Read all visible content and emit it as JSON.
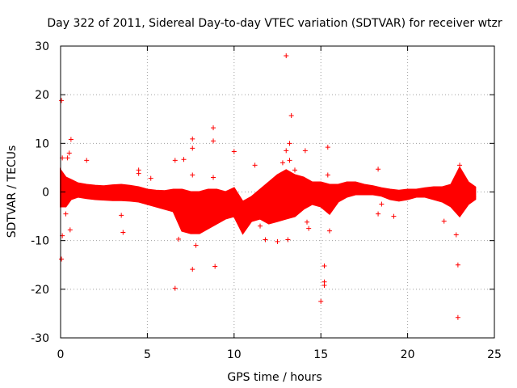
{
  "chart_data": {
    "type": "scatter",
    "title": "Day 322 of 2011, Sidereal Day-to-day VTEC variation (SDTVAR) for receiver wtzr",
    "xlabel": "GPS time / hours",
    "ylabel": "SDTVAR / TECUs",
    "xlim": [
      0,
      25
    ],
    "ylim": [
      -30,
      30
    ],
    "xticks": [
      0,
      5,
      10,
      15,
      20,
      25
    ],
    "yticks": [
      -30,
      -20,
      -10,
      0,
      10,
      20,
      30
    ],
    "grid": true,
    "marker": "+",
    "color": "#ff0000",
    "band": [
      {
        "x": 0.0,
        "lo": -3.0,
        "hi": 4.5
      },
      {
        "x": 0.3,
        "lo": -3.0,
        "hi": 3.0
      },
      {
        "x": 0.6,
        "lo": -1.5,
        "hi": 2.5
      },
      {
        "x": 1.0,
        "lo": -1.0,
        "hi": 1.8
      },
      {
        "x": 1.5,
        "lo": -1.3,
        "hi": 1.5
      },
      {
        "x": 2.0,
        "lo": -1.5,
        "hi": 1.3
      },
      {
        "x": 2.5,
        "lo": -1.6,
        "hi": 1.2
      },
      {
        "x": 3.0,
        "lo": -1.7,
        "hi": 1.4
      },
      {
        "x": 3.5,
        "lo": -1.7,
        "hi": 1.5
      },
      {
        "x": 4.0,
        "lo": -1.8,
        "hi": 1.3
      },
      {
        "x": 4.5,
        "lo": -2.0,
        "hi": 1.0
      },
      {
        "x": 5.0,
        "lo": -2.5,
        "hi": 0.5
      },
      {
        "x": 5.5,
        "lo": -3.0,
        "hi": 0.3
      },
      {
        "x": 6.0,
        "lo": -3.5,
        "hi": 0.2
      },
      {
        "x": 6.5,
        "lo": -4.0,
        "hi": 0.5
      },
      {
        "x": 7.0,
        "lo": -8.0,
        "hi": 0.5
      },
      {
        "x": 7.5,
        "lo": -8.5,
        "hi": 0.0
      },
      {
        "x": 8.0,
        "lo": -8.5,
        "hi": 0.0
      },
      {
        "x": 8.5,
        "lo": -7.5,
        "hi": 0.5
      },
      {
        "x": 9.0,
        "lo": -6.5,
        "hi": 0.5
      },
      {
        "x": 9.5,
        "lo": -5.5,
        "hi": 0.0
      },
      {
        "x": 10.0,
        "lo": -5.0,
        "hi": 0.8
      },
      {
        "x": 10.5,
        "lo": -8.5,
        "hi": -2.0
      },
      {
        "x": 11.0,
        "lo": -6.0,
        "hi": -1.0
      },
      {
        "x": 11.5,
        "lo": -5.5,
        "hi": 0.5
      },
      {
        "x": 12.0,
        "lo": -6.5,
        "hi": 2.0
      },
      {
        "x": 12.5,
        "lo": -6.0,
        "hi": 3.5
      },
      {
        "x": 13.0,
        "lo": -5.5,
        "hi": 4.5
      },
      {
        "x": 13.5,
        "lo": -5.0,
        "hi": 3.5
      },
      {
        "x": 14.0,
        "lo": -3.5,
        "hi": 3.0
      },
      {
        "x": 14.5,
        "lo": -2.5,
        "hi": 2.0
      },
      {
        "x": 15.0,
        "lo": -3.0,
        "hi": 2.0
      },
      {
        "x": 15.5,
        "lo": -4.5,
        "hi": 1.5
      },
      {
        "x": 16.0,
        "lo": -2.0,
        "hi": 1.5
      },
      {
        "x": 16.5,
        "lo": -1.0,
        "hi": 2.0
      },
      {
        "x": 17.0,
        "lo": -0.5,
        "hi": 2.0
      },
      {
        "x": 17.5,
        "lo": -0.5,
        "hi": 1.5
      },
      {
        "x": 18.0,
        "lo": -0.5,
        "hi": 1.2
      },
      {
        "x": 18.5,
        "lo": -0.8,
        "hi": 0.8
      },
      {
        "x": 19.0,
        "lo": -1.5,
        "hi": 0.5
      },
      {
        "x": 19.5,
        "lo": -1.8,
        "hi": 0.3
      },
      {
        "x": 20.0,
        "lo": -1.5,
        "hi": 0.5
      },
      {
        "x": 20.5,
        "lo": -1.0,
        "hi": 0.5
      },
      {
        "x": 21.0,
        "lo": -1.0,
        "hi": 0.8
      },
      {
        "x": 21.5,
        "lo": -1.5,
        "hi": 1.0
      },
      {
        "x": 22.0,
        "lo": -2.0,
        "hi": 1.0
      },
      {
        "x": 22.5,
        "lo": -3.0,
        "hi": 1.5
      },
      {
        "x": 23.0,
        "lo": -5.0,
        "hi": 5.0
      },
      {
        "x": 23.5,
        "lo": -2.5,
        "hi": 2.0
      },
      {
        "x": 23.9,
        "lo": -1.5,
        "hi": 1.0
      }
    ],
    "outliers": [
      {
        "x": 0.05,
        "y": 18.8
      },
      {
        "x": 0.05,
        "y": -13.8
      },
      {
        "x": 0.1,
        "y": -9.0
      },
      {
        "x": 0.1,
        "y": 7.0
      },
      {
        "x": 0.4,
        "y": 7.0
      },
      {
        "x": 0.5,
        "y": 8.0
      },
      {
        "x": 0.6,
        "y": 10.8
      },
      {
        "x": 0.55,
        "y": -7.8
      },
      {
        "x": 0.3,
        "y": -4.5
      },
      {
        "x": 1.5,
        "y": 6.5
      },
      {
        "x": 3.5,
        "y": -4.8
      },
      {
        "x": 3.6,
        "y": -8.3
      },
      {
        "x": 4.5,
        "y": 4.5
      },
      {
        "x": 4.5,
        "y": 3.8
      },
      {
        "x": 5.2,
        "y": 2.8
      },
      {
        "x": 6.6,
        "y": 6.5
      },
      {
        "x": 6.6,
        "y": -19.8
      },
      {
        "x": 6.8,
        "y": -9.7
      },
      {
        "x": 7.1,
        "y": 6.7
      },
      {
        "x": 7.6,
        "y": 10.9
      },
      {
        "x": 7.6,
        "y": 3.5
      },
      {
        "x": 7.6,
        "y": 9.0
      },
      {
        "x": 7.6,
        "y": -15.9
      },
      {
        "x": 7.8,
        "y": -11.0
      },
      {
        "x": 8.8,
        "y": 13.2
      },
      {
        "x": 8.8,
        "y": 10.5
      },
      {
        "x": 8.8,
        "y": 3.0
      },
      {
        "x": 8.9,
        "y": -15.3
      },
      {
        "x": 10.0,
        "y": 8.3
      },
      {
        "x": 11.2,
        "y": 5.5
      },
      {
        "x": 11.5,
        "y": -7.0
      },
      {
        "x": 11.8,
        "y": -9.8
      },
      {
        "x": 12.5,
        "y": -10.2
      },
      {
        "x": 12.8,
        "y": 6.0
      },
      {
        "x": 13.0,
        "y": 28.0
      },
      {
        "x": 13.0,
        "y": 8.5
      },
      {
        "x": 13.1,
        "y": -9.8
      },
      {
        "x": 13.2,
        "y": 6.5
      },
      {
        "x": 13.2,
        "y": 10.0
      },
      {
        "x": 13.3,
        "y": 15.7
      },
      {
        "x": 13.5,
        "y": 4.5
      },
      {
        "x": 14.1,
        "y": 8.5
      },
      {
        "x": 14.2,
        "y": -6.2
      },
      {
        "x": 14.3,
        "y": -7.5
      },
      {
        "x": 15.0,
        "y": -22.5
      },
      {
        "x": 15.2,
        "y": -15.2
      },
      {
        "x": 15.2,
        "y": -18.5
      },
      {
        "x": 15.2,
        "y": -19.2
      },
      {
        "x": 15.4,
        "y": 9.2
      },
      {
        "x": 15.4,
        "y": 3.5
      },
      {
        "x": 15.5,
        "y": -8.0
      },
      {
        "x": 18.3,
        "y": 4.7
      },
      {
        "x": 18.3,
        "y": -4.5
      },
      {
        "x": 18.5,
        "y": -2.5
      },
      {
        "x": 19.2,
        "y": -5.0
      },
      {
        "x": 22.1,
        "y": -6.0
      },
      {
        "x": 22.8,
        "y": -8.8
      },
      {
        "x": 22.9,
        "y": -15.0
      },
      {
        "x": 22.9,
        "y": -25.8
      },
      {
        "x": 23.0,
        "y": 5.5
      },
      {
        "x": 23.5,
        "y": 1.5
      },
      {
        "x": 23.8,
        "y": -1.0
      }
    ]
  }
}
